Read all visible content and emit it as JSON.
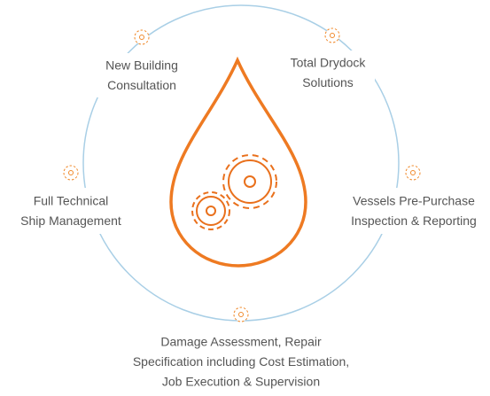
{
  "nodes": [
    {
      "lines": [
        "New Building",
        "Consultation"
      ]
    },
    {
      "lines": [
        "Total Drydock",
        "Solutions"
      ]
    },
    {
      "lines": [
        "Full Technical",
        "Ship Management"
      ]
    },
    {
      "lines": [
        "Vessels Pre-Purchase",
        "Inspection & Reporting"
      ]
    },
    {
      "lines": [
        "Damage Assessment, Repair",
        "Specification including Cost Estimation,",
        "Job Execution & Supervision"
      ]
    }
  ]
}
